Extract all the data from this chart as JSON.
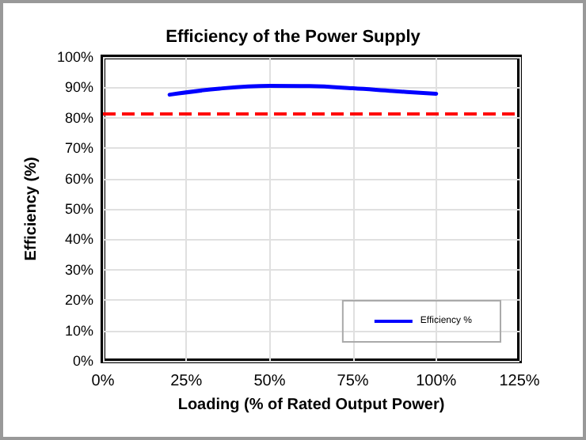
{
  "chart_data": {
    "type": "line",
    "title": "Efficiency of the Power Supply",
    "xlabel": "Loading (% of Rated Output Power)",
    "ylabel": "Efficiency (%)",
    "x": [
      20,
      35,
      50,
      62,
      75,
      87,
      100
    ],
    "series": [
      {
        "name": "Efficiency %",
        "color": "#0000ff",
        "values": [
          87.6,
          89.6,
          90.5,
          90.4,
          89.7,
          88.8,
          87.9
        ]
      }
    ],
    "xlim": [
      0,
      125
    ],
    "ylim": [
      0,
      100
    ],
    "xticks": [
      {
        "value": 0,
        "label": "0%"
      },
      {
        "value": 25,
        "label": "25%"
      },
      {
        "value": 50,
        "label": "50%"
      },
      {
        "value": 75,
        "label": "75%"
      },
      {
        "value": 100,
        "label": "100%"
      },
      {
        "value": 125,
        "label": "125%"
      }
    ],
    "yticks": [
      {
        "value": 0,
        "label": "0%"
      },
      {
        "value": 10,
        "label": "10%"
      },
      {
        "value": 20,
        "label": "20%"
      },
      {
        "value": 30,
        "label": "30%"
      },
      {
        "value": 40,
        "label": "40%"
      },
      {
        "value": 50,
        "label": "50%"
      },
      {
        "value": 60,
        "label": "60%"
      },
      {
        "value": 70,
        "label": "70%"
      },
      {
        "value": 80,
        "label": "80%"
      },
      {
        "value": 90,
        "label": "90%"
      },
      {
        "value": 100,
        "label": "100%"
      }
    ],
    "ref_lines": [
      {
        "axis": "y",
        "value": 81.5,
        "color": "#ff0000",
        "line_style": "dashed"
      }
    ],
    "grid": true,
    "legend": "bottom right",
    "marker": "none",
    "line_style": "solid"
  }
}
